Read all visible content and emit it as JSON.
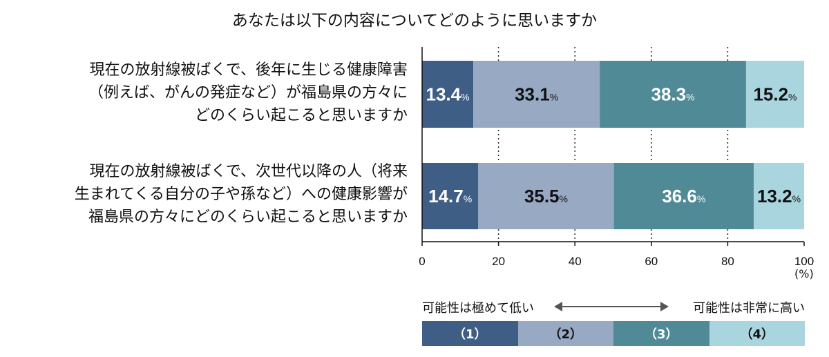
{
  "title": "あなたは以下の内容についてどのように思いますか",
  "questions": [
    {
      "lines": [
        "現在の放射線被ばくで、後年に生じる健康障害",
        "（例えば、がんの発症など）が福島県の方々に",
        "どのくらい起こると思いますか"
      ]
    },
    {
      "lines": [
        "現在の放射線被ばくで、次世代以降の人（将来",
        "生まれてくる自分の子や孫など）への健康影響が",
        "福島県の方々にどのくらい起こると思いますか"
      ]
    }
  ],
  "chart_data": {
    "type": "bar",
    "orientation": "horizontal-stacked",
    "title": "あなたは以下の内容についてどのように思いますか",
    "categories": [
      "後年に生じる健康障害",
      "次世代以降の人への健康影響"
    ],
    "series": [
      {
        "name": "（1）",
        "values": [
          13.4,
          14.7
        ],
        "color": "#3f5e86"
      },
      {
        "name": "（2）",
        "values": [
          33.1,
          35.5
        ],
        "color": "#98a9c4"
      },
      {
        "name": "（3）",
        "values": [
          38.3,
          36.6
        ],
        "color": "#4f8a96"
      },
      {
        "name": "（4）",
        "values": [
          15.2,
          13.2
        ],
        "color": "#a9d5df"
      }
    ],
    "xlim": [
      0,
      100
    ],
    "xticks": [
      "0",
      "20",
      "40",
      "60",
      "80",
      "100"
    ],
    "unit_label": "(%)",
    "value_suffix": "%",
    "grid": "dotted vertical",
    "label_colors": [
      "#ffffff",
      "#111111",
      "#ffffff",
      "#111111"
    ]
  },
  "legend": {
    "left_note": "可能性は極めて低い",
    "right_note": "可能性は非常に高い",
    "items": [
      "（1）",
      "（2）",
      "（3）",
      "（4）"
    ],
    "colors": [
      "#3f5e86",
      "#98a9c4",
      "#4f8a96",
      "#a9d5df"
    ],
    "text_colors": [
      "#ffffff",
      "#111111",
      "#ffffff",
      "#111111"
    ]
  }
}
